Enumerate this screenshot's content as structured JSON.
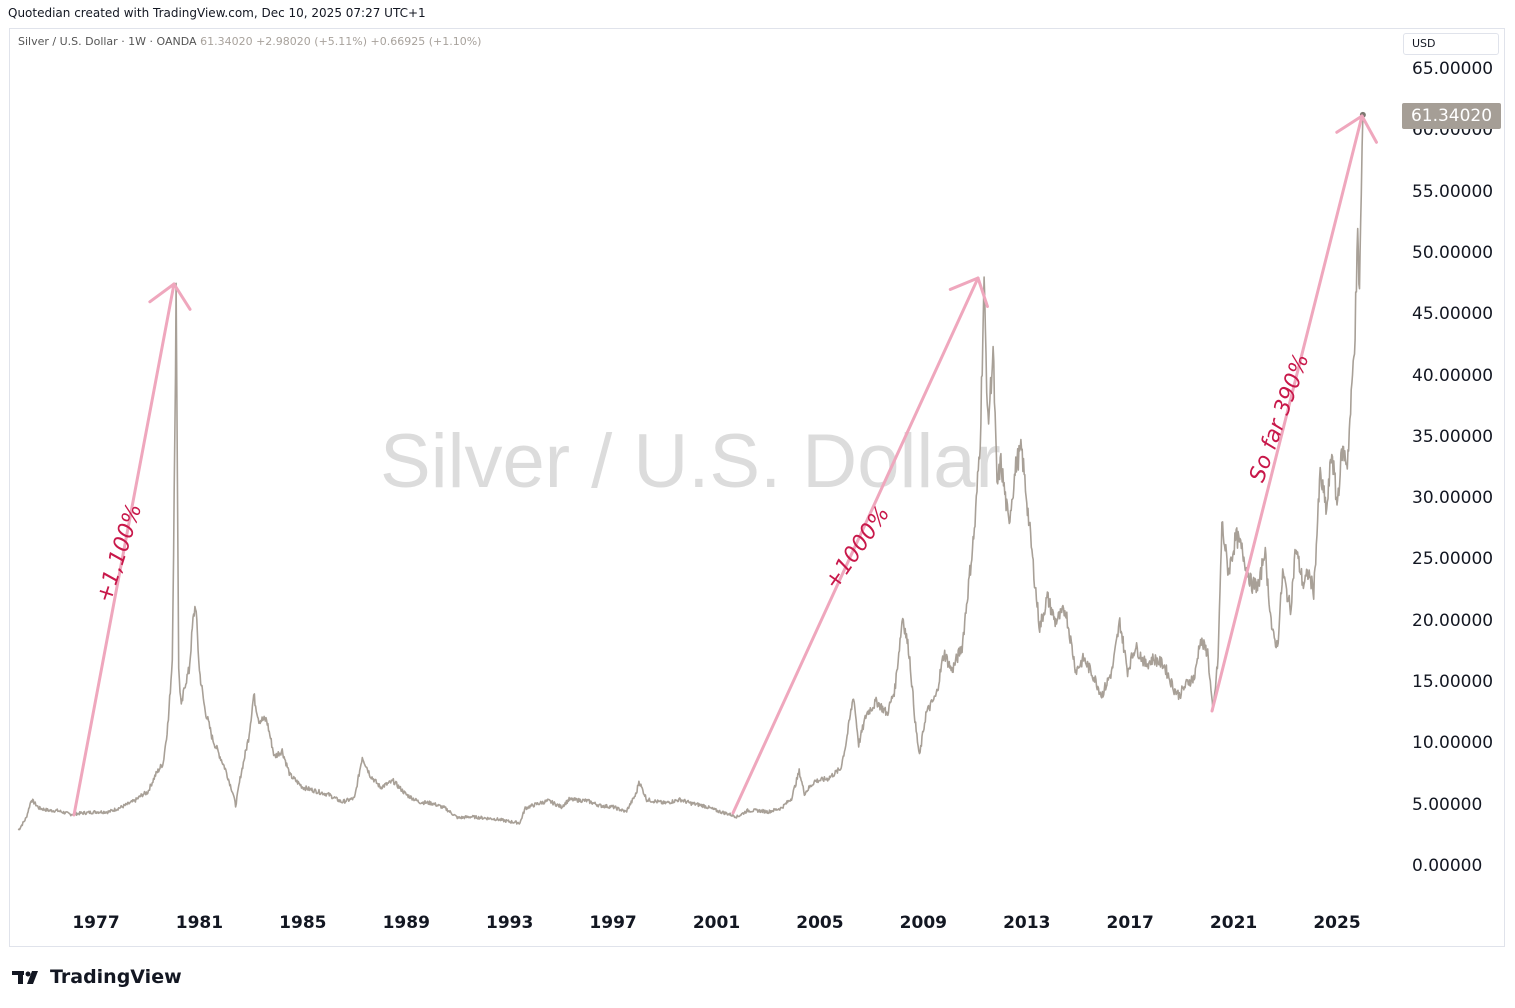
{
  "header": {
    "caption": "Quotedian created with TradingView.com, Dec 10, 2025 07:27 UTC+1"
  },
  "legend": {
    "symbol": "Silver / U.S. Dollar · 1W · OANDA",
    "price": "61.34020",
    "change": "+2.98020 (+5.11%)",
    "change2": "+0.66925 (+1.10%)"
  },
  "watermark": "Silver / U.S. Dollar",
  "currency_label": "USD",
  "last_price": "61.34020",
  "footer": {
    "brand": "TradingView"
  },
  "annotations": [
    {
      "text": "+1,100%"
    },
    {
      "text": "+1000%"
    },
    {
      "text": "So far 390%"
    }
  ],
  "colors": {
    "series": "#a8a097",
    "arrow": "#efa7bd",
    "annotation": "#c8184a",
    "price_tag": "#a59e96"
  },
  "chart_data": {
    "type": "line",
    "title": "Silver / U.S. Dollar · 1W · OANDA",
    "xlabel": "",
    "ylabel": "USD",
    "x_ticks": [
      "1977",
      "1981",
      "1985",
      "1989",
      "1993",
      "1997",
      "2001",
      "2005",
      "2009",
      "2013",
      "2017",
      "2021",
      "2025"
    ],
    "y_ticks": [
      "0.00000",
      "5.00000",
      "10.00000",
      "15.00000",
      "20.00000",
      "25.00000",
      "30.00000",
      "35.00000",
      "40.00000",
      "45.00000",
      "50.00000",
      "55.00000",
      "60.00000",
      "65.00000"
    ],
    "ylim": [
      0,
      65
    ],
    "xlim": [
      1974.0,
      2026.5
    ],
    "series": [
      {
        "values": [
          [
            1974.0,
            3.0
          ],
          [
            1974.3,
            4.0
          ],
          [
            1974.5,
            5.5
          ],
          [
            1974.8,
            4.8
          ],
          [
            1975.2,
            4.6
          ],
          [
            1975.5,
            4.6
          ],
          [
            1976.0,
            4.3
          ],
          [
            1976.5,
            4.4
          ],
          [
            1977.0,
            4.5
          ],
          [
            1977.5,
            4.5
          ],
          [
            1978.0,
            4.9
          ],
          [
            1978.5,
            5.4
          ],
          [
            1978.8,
            5.9
          ],
          [
            1979.0,
            6.1
          ],
          [
            1979.3,
            7.5
          ],
          [
            1979.6,
            8.5
          ],
          [
            1979.8,
            12.0
          ],
          [
            1979.95,
            17.0
          ],
          [
            1980.05,
            35.0
          ],
          [
            1980.1,
            47.5
          ],
          [
            1980.15,
            32.0
          ],
          [
            1980.2,
            16.0
          ],
          [
            1980.3,
            13.0
          ],
          [
            1980.45,
            15.0
          ],
          [
            1980.6,
            16.0
          ],
          [
            1980.75,
            20.0
          ],
          [
            1980.85,
            21.5
          ],
          [
            1981.0,
            16.0
          ],
          [
            1981.2,
            13.0
          ],
          [
            1981.5,
            10.5
          ],
          [
            1981.8,
            9.0
          ],
          [
            1982.0,
            8.0
          ],
          [
            1982.3,
            6.0
          ],
          [
            1982.4,
            5.0
          ],
          [
            1982.6,
            7.5
          ],
          [
            1982.9,
            10.5
          ],
          [
            1983.1,
            14.0
          ],
          [
            1983.3,
            12.0
          ],
          [
            1983.6,
            12.0
          ],
          [
            1983.9,
            9.0
          ],
          [
            1984.2,
            9.5
          ],
          [
            1984.5,
            7.5
          ],
          [
            1985.0,
            6.5
          ],
          [
            1985.5,
            6.2
          ],
          [
            1986.0,
            5.9
          ],
          [
            1986.5,
            5.3
          ],
          [
            1987.0,
            5.6
          ],
          [
            1987.3,
            9.0
          ],
          [
            1987.6,
            7.5
          ],
          [
            1988.0,
            6.5
          ],
          [
            1988.5,
            7.0
          ],
          [
            1989.0,
            5.9
          ],
          [
            1989.5,
            5.3
          ],
          [
            1990.0,
            5.2
          ],
          [
            1990.5,
            4.8
          ],
          [
            1991.0,
            4.0
          ],
          [
            1991.5,
            4.1
          ],
          [
            1992.0,
            4.0
          ],
          [
            1992.5,
            3.9
          ],
          [
            1993.0,
            3.7
          ],
          [
            1993.4,
            3.6
          ],
          [
            1993.6,
            4.8
          ],
          [
            1994.0,
            5.1
          ],
          [
            1994.5,
            5.4
          ],
          [
            1995.0,
            4.9
          ],
          [
            1995.3,
            5.5
          ],
          [
            1996.0,
            5.4
          ],
          [
            1996.5,
            5.0
          ],
          [
            1997.0,
            4.9
          ],
          [
            1997.5,
            4.5
          ],
          [
            1997.9,
            6.0
          ],
          [
            1998.0,
            7.0
          ],
          [
            1998.3,
            5.5
          ],
          [
            1999.0,
            5.2
          ],
          [
            1999.6,
            5.5
          ],
          [
            2000.0,
            5.2
          ],
          [
            2000.5,
            5.0
          ],
          [
            2001.0,
            4.6
          ],
          [
            2001.5,
            4.3
          ],
          [
            2001.8,
            4.1
          ],
          [
            2002.2,
            4.6
          ],
          [
            2002.6,
            4.6
          ],
          [
            2003.0,
            4.5
          ],
          [
            2003.5,
            4.8
          ],
          [
            2003.9,
            5.6
          ],
          [
            2004.2,
            7.8
          ],
          [
            2004.4,
            6.0
          ],
          [
            2004.8,
            7.0
          ],
          [
            2005.3,
            7.2
          ],
          [
            2005.8,
            8.0
          ],
          [
            2006.0,
            10.0
          ],
          [
            2006.3,
            14.0
          ],
          [
            2006.5,
            10.0
          ],
          [
            2006.8,
            12.5
          ],
          [
            2007.2,
            13.5
          ],
          [
            2007.6,
            12.5
          ],
          [
            2007.9,
            14.5
          ],
          [
            2008.2,
            20.5
          ],
          [
            2008.45,
            17.5
          ],
          [
            2008.7,
            11.5
          ],
          [
            2008.85,
            9.0
          ],
          [
            2009.1,
            12.5
          ],
          [
            2009.5,
            14.0
          ],
          [
            2009.8,
            17.5
          ],
          [
            2010.1,
            16.0
          ],
          [
            2010.5,
            18.0
          ],
          [
            2010.8,
            24.0
          ],
          [
            2011.0,
            28.0
          ],
          [
            2011.2,
            35.0
          ],
          [
            2011.35,
            47.5
          ],
          [
            2011.5,
            36.0
          ],
          [
            2011.7,
            42.0
          ],
          [
            2011.85,
            31.0
          ],
          [
            2012.0,
            33.0
          ],
          [
            2012.3,
            28.0
          ],
          [
            2012.6,
            33.0
          ],
          [
            2012.8,
            34.0
          ],
          [
            2013.0,
            30.0
          ],
          [
            2013.3,
            23.5
          ],
          [
            2013.5,
            19.5
          ],
          [
            2013.8,
            22.0
          ],
          [
            2014.1,
            20.0
          ],
          [
            2014.5,
            21.0
          ],
          [
            2014.9,
            16.0
          ],
          [
            2015.2,
            17.0
          ],
          [
            2015.6,
            15.5
          ],
          [
            2015.9,
            14.0
          ],
          [
            2016.3,
            16.0
          ],
          [
            2016.6,
            20.0
          ],
          [
            2016.9,
            16.0
          ],
          [
            2017.2,
            18.0
          ],
          [
            2017.6,
            16.5
          ],
          [
            2017.9,
            17.0
          ],
          [
            2018.3,
            16.5
          ],
          [
            2018.7,
            14.5
          ],
          [
            2018.9,
            14.0
          ],
          [
            2019.2,
            15.0
          ],
          [
            2019.5,
            15.5
          ],
          [
            2019.7,
            18.5
          ],
          [
            2020.0,
            17.5
          ],
          [
            2020.2,
            12.5
          ],
          [
            2020.4,
            17.0
          ],
          [
            2020.55,
            28.0
          ],
          [
            2020.8,
            24.0
          ],
          [
            2021.1,
            27.0
          ],
          [
            2021.3,
            26.0
          ],
          [
            2021.7,
            23.0
          ],
          [
            2022.0,
            23.0
          ],
          [
            2022.2,
            26.0
          ],
          [
            2022.5,
            19.0
          ],
          [
            2022.7,
            18.0
          ],
          [
            2022.9,
            24.0
          ],
          [
            2023.2,
            21.0
          ],
          [
            2023.4,
            26.0
          ],
          [
            2023.7,
            23.0
          ],
          [
            2023.9,
            24.0
          ],
          [
            2024.1,
            22.5
          ],
          [
            2024.35,
            32.0
          ],
          [
            2024.6,
            29.0
          ],
          [
            2024.8,
            34.0
          ],
          [
            2025.0,
            29.5
          ],
          [
            2025.2,
            34.0
          ],
          [
            2025.4,
            33.0
          ],
          [
            2025.55,
            38.0
          ],
          [
            2025.7,
            44.0
          ],
          [
            2025.8,
            51.0
          ],
          [
            2025.87,
            47.0
          ],
          [
            2025.94,
            55.0
          ],
          [
            2026.0,
            61.34
          ]
        ]
      }
    ]
  }
}
